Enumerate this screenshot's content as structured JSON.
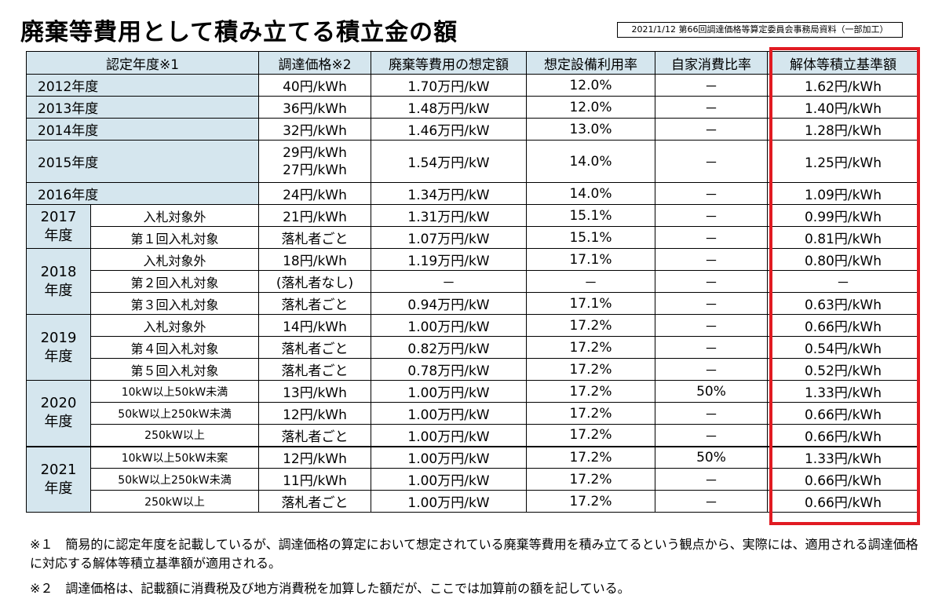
{
  "title": "廃棄等費用として積み立てる積立金の額",
  "source": "2021/1/12 第66回調達価格等算定委員会事務局資料（一部加工）",
  "headers": [
    "認定年度※1",
    "調達価格※2",
    "廃棄等費用の想定額",
    "想定設備利用率",
    "自家消費比率",
    "解体等積立基準額"
  ],
  "groups": {
    "y2017": "2017\n年度",
    "y2018": "2018\n年度",
    "y2019": "2019\n年度",
    "y2020": "2020\n年度",
    "y2021": "2021\n年度"
  },
  "rows": [
    {
      "year": "2012年度",
      "price": "40円/kWh",
      "cost": "1.70万円/kW",
      "util": "12.0%",
      "self": "－",
      "base": "1.62円/kWh"
    },
    {
      "year": "2013年度",
      "price": "36円/kWh",
      "cost": "1.48万円/kW",
      "util": "12.0%",
      "self": "－",
      "base": "1.40円/kWh"
    },
    {
      "year": "2014年度",
      "price": "32円/kWh",
      "cost": "1.46万円/kW",
      "util": "13.0%",
      "self": "－",
      "base": "1.28円/kWh"
    },
    {
      "year": "2015年度",
      "price": "29円/kWh\n27円/kWh",
      "cost": "1.54万円/kW",
      "util": "14.0%",
      "self": "－",
      "base": "1.25円/kWh"
    },
    {
      "year": "2016年度",
      "price": "24円/kWh",
      "cost": "1.34万円/kW",
      "util": "14.0%",
      "self": "－",
      "base": "1.09円/kWh"
    },
    {
      "sub": "入札対象外",
      "price": "21円/kWh",
      "cost": "1.31万円/kW",
      "util": "15.1%",
      "self": "－",
      "base": "0.99円/kWh"
    },
    {
      "sub": "第１回入札対象",
      "price": "落札者ごと",
      "cost": "1.07万円/kW",
      "util": "15.1%",
      "self": "－",
      "base": "0.81円/kWh"
    },
    {
      "sub": "入札対象外",
      "price": "18円/kWh",
      "cost": "1.19万円/kW",
      "util": "17.1%",
      "self": "－",
      "base": "0.80円/kWh"
    },
    {
      "sub": "第２回入札対象",
      "price": "(落札者なし)",
      "cost": "－",
      "util": "－",
      "self": "－",
      "base": "－"
    },
    {
      "sub": "第３回入札対象",
      "price": "落札者ごと",
      "cost": "0.94万円/kW",
      "util": "17.1%",
      "self": "－",
      "base": "0.63円/kWh"
    },
    {
      "sub": "入札対象外",
      "price": "14円/kWh",
      "cost": "1.00万円/kW",
      "util": "17.2%",
      "self": "－",
      "base": "0.66円/kWh"
    },
    {
      "sub": "第４回入札対象",
      "price": "落札者ごと",
      "cost": "0.82万円/kW",
      "util": "17.2%",
      "self": "－",
      "base": "0.54円/kWh"
    },
    {
      "sub": "第５回入札対象",
      "price": "落札者ごと",
      "cost": "0.78万円/kW",
      "util": "17.2%",
      "self": "－",
      "base": "0.52円/kWh"
    },
    {
      "sub": "10kW以上50kW未満",
      "price": "13円/kWh",
      "cost": "1.00万円/kW",
      "util": "17.2%",
      "self": "50%",
      "base": "1.33円/kWh"
    },
    {
      "sub": "50kW以上250kW未満",
      "price": "12円/kWh",
      "cost": "1.00万円/kW",
      "util": "17.2%",
      "self": "－",
      "base": "0.66円/kWh"
    },
    {
      "sub": "250kW以上",
      "price": "落札者ごと",
      "cost": "1.00万円/kW",
      "util": "17.2%",
      "self": "－",
      "base": "0.66円/kWh"
    },
    {
      "sub": "10kW以上50kW未案",
      "price": "12円/kWh",
      "cost": "1.00万円/kW",
      "util": "17.2%",
      "self": "50%",
      "base": "1.33円/kWh"
    },
    {
      "sub": "50kW以上250kW未満",
      "price": "11円/kWh",
      "cost": "1.00万円/kW",
      "util": "17.2%",
      "self": "－",
      "base": "0.66円/kWh"
    },
    {
      "sub": "250kW以上",
      "price": "落札者ごと",
      "cost": "1.00万円/kW",
      "util": "17.2%",
      "self": "－",
      "base": "0.66円/kWh"
    }
  ],
  "notes": {
    "n1": "※１　簡易的に認定年度を記載しているが、調達価格の算定において想定されている廃棄等費用を積み立てるという観点から、実際には、適用される調達価格に対応する解体等積立基準額が適用される。",
    "n2": "※２　調達価格は、記載額に消費税及び地方消費税を加算した額だが、ここでは加算前の額を記している。"
  },
  "colors": {
    "header_bg": "#d5e6ee",
    "highlight": "#e11b22"
  }
}
